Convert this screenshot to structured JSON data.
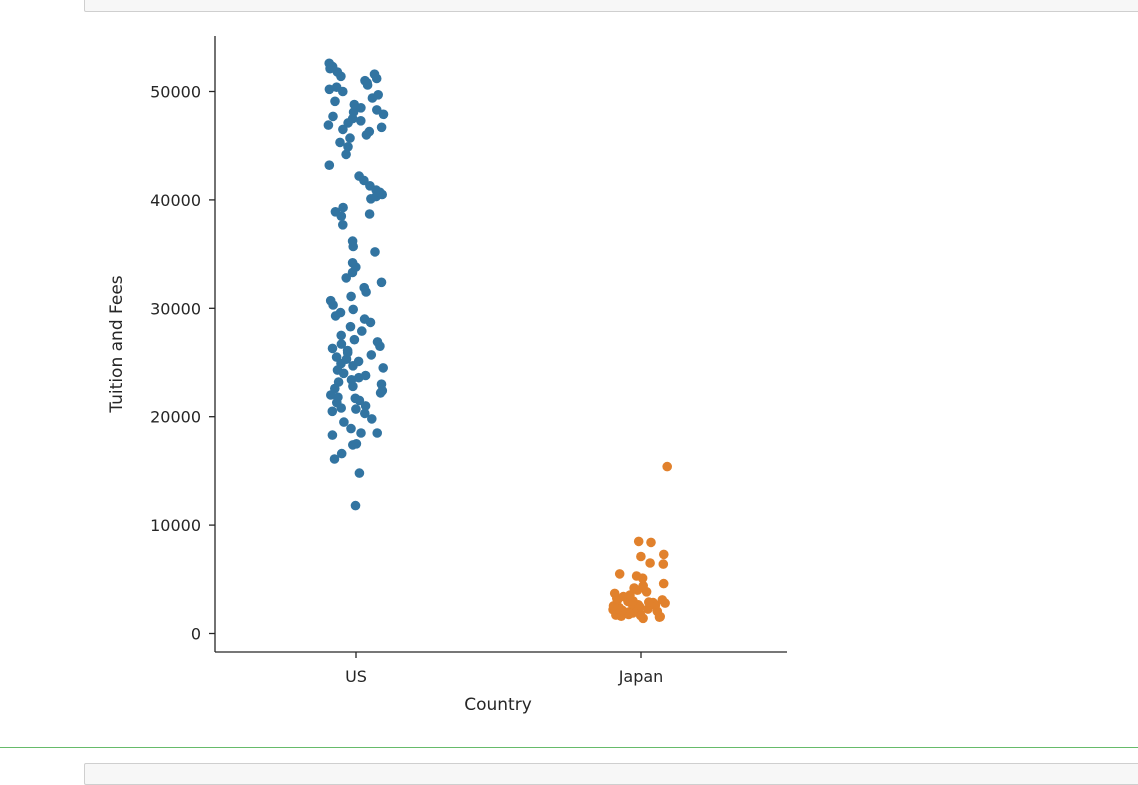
{
  "chart_data": {
    "type": "scatter",
    "title": "",
    "xlabel": "Country",
    "ylabel": "Tuition and Fees",
    "categories": [
      "US",
      "Japan"
    ],
    "ylim": [
      -1500,
      55000
    ],
    "yticks": [
      0,
      10000,
      20000,
      30000,
      40000,
      50000
    ],
    "grid": false,
    "colors": {
      "US": "#3274a1",
      "Japan": "#e1812c"
    },
    "series": [
      {
        "category": "US",
        "values": [
          11800,
          14800,
          16100,
          16600,
          17400,
          17500,
          18300,
          18500,
          18500,
          18900,
          19500,
          19800,
          20300,
          20500,
          20700,
          20800,
          21000,
          21300,
          21500,
          21700,
          21800,
          22000,
          22200,
          22400,
          22600,
          22800,
          23000,
          23200,
          23400,
          23600,
          23800,
          24000,
          24300,
          24500,
          24700,
          24900,
          25100,
          25300,
          25500,
          25700,
          25900,
          26100,
          26300,
          26500,
          26700,
          26900,
          27100,
          27500,
          27900,
          28300,
          28700,
          29000,
          29300,
          29600,
          29900,
          30300,
          30700,
          31100,
          31500,
          31900,
          32400,
          32800,
          33300,
          33800,
          34200,
          35200,
          35700,
          36200,
          37700,
          38500,
          38700,
          38900,
          39300,
          40100,
          40300,
          40500,
          40700,
          40900,
          41300,
          41800,
          42200,
          43200,
          44200,
          44900,
          45300,
          45700,
          46000,
          46300,
          46500,
          46700,
          46900,
          47100,
          47300,
          47500,
          47700,
          47900,
          48100,
          48300,
          48500,
          48800,
          49100,
          49400,
          49700,
          50000,
          50200,
          50400,
          50600,
          50800,
          51000,
          51200,
          51400,
          51600,
          51800,
          52100,
          52300,
          52600
        ]
      },
      {
        "category": "Japan",
        "values": [
          1400,
          1500,
          1550,
          1600,
          1650,
          1700,
          1750,
          1800,
          1850,
          1900,
          1950,
          2000,
          2050,
          2100,
          2150,
          2200,
          2250,
          2300,
          2350,
          2400,
          2450,
          2500,
          2550,
          2600,
          2650,
          2700,
          2750,
          2800,
          2850,
          2900,
          2950,
          3000,
          3050,
          3100,
          3150,
          3250,
          3400,
          3550,
          3700,
          3850,
          4000,
          4200,
          4400,
          4600,
          5100,
          5300,
          5500,
          6400,
          6500,
          7100,
          7300,
          8400,
          8500,
          15400
        ]
      }
    ]
  }
}
